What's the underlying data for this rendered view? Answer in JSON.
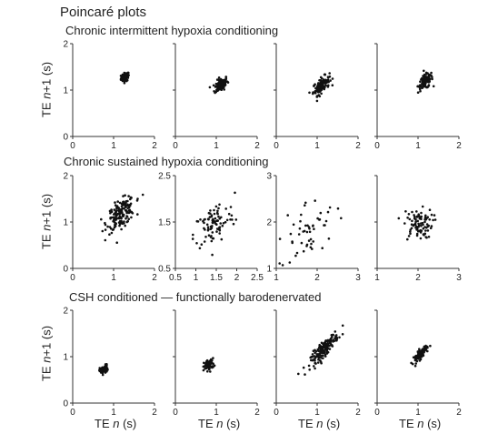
{
  "title": "Poincaré plots",
  "y_label_prefix": "TE ",
  "y_label_var": "n",
  "y_label_suffix": "+1 (s)",
  "x_label_prefix": "TE ",
  "x_label_var": "n",
  "x_label_suffix": " (s)",
  "rows": [
    {
      "title": "Chronic intermittent hypoxia conditioning"
    },
    {
      "title": "Chronic sustained hypoxia conditioning"
    },
    {
      "title": "CSH conditioned — functionally barodenervated"
    }
  ],
  "chart_data": [
    {
      "type": "scatter",
      "row": 0,
      "col": 0,
      "xlim": [
        0,
        2
      ],
      "ylim": [
        0,
        2
      ],
      "xticks": [
        0,
        1,
        2
      ],
      "yticks": [
        0,
        1,
        2
      ],
      "show_xticks": true,
      "show_yticks": true,
      "clusters": [
        {
          "cx": 1.28,
          "cy": 1.28,
          "sx": 0.05,
          "sy": 0.05,
          "rho": 0.3,
          "n": 70
        }
      ]
    },
    {
      "type": "scatter",
      "row": 0,
      "col": 1,
      "xlim": [
        0,
        2
      ],
      "ylim": [
        0,
        2
      ],
      "xticks": [
        0,
        1,
        2
      ],
      "yticks": [
        0,
        1,
        2
      ],
      "show_xticks": true,
      "show_yticks": false,
      "clusters": [
        {
          "cx": 1.12,
          "cy": 1.12,
          "sx": 0.08,
          "sy": 0.08,
          "rho": 0.5,
          "n": 110
        }
      ]
    },
    {
      "type": "scatter",
      "row": 0,
      "col": 2,
      "xlim": [
        0,
        2
      ],
      "ylim": [
        0,
        2
      ],
      "xticks": [
        0,
        1,
        2
      ],
      "yticks": [
        0,
        1,
        2
      ],
      "show_xticks": true,
      "show_yticks": false,
      "clusters": [
        {
          "cx": 1.1,
          "cy": 1.1,
          "sx": 0.1,
          "sy": 0.1,
          "rho": 0.6,
          "n": 110
        }
      ]
    },
    {
      "type": "scatter",
      "row": 0,
      "col": 3,
      "xlim": [
        0,
        2
      ],
      "ylim": [
        0,
        2
      ],
      "xticks": [
        0,
        1,
        2
      ],
      "yticks": [
        0,
        1,
        2
      ],
      "show_xticks": true,
      "show_yticks": false,
      "clusters": [
        {
          "cx": 1.18,
          "cy": 1.18,
          "sx": 0.09,
          "sy": 0.09,
          "rho": 0.5,
          "n": 110
        }
      ]
    },
    {
      "type": "scatter",
      "row": 1,
      "col": 0,
      "xlim": [
        0,
        2
      ],
      "ylim": [
        0,
        2
      ],
      "xticks": [
        0,
        1,
        2
      ],
      "yticks": [
        0,
        1,
        2
      ],
      "show_xticks": true,
      "show_yticks": true,
      "clusters": [
        {
          "cx": 1.18,
          "cy": 1.18,
          "sx": 0.17,
          "sy": 0.17,
          "rho": 0.55,
          "n": 170
        }
      ]
    },
    {
      "type": "scatter",
      "row": 1,
      "col": 1,
      "xlim": [
        0.5,
        2.5
      ],
      "ylim": [
        0.5,
        2.5
      ],
      "xticks": [
        0.5,
        1,
        1.5,
        2,
        2.5
      ],
      "yticks": [
        0.5,
        1.5,
        2.5
      ],
      "show_xticks": true,
      "show_yticks": true,
      "clusters": [
        {
          "cx": 1.45,
          "cy": 1.45,
          "sx": 0.25,
          "sy": 0.25,
          "rho": 0.45,
          "n": 90
        }
      ]
    },
    {
      "type": "scatter",
      "row": 1,
      "col": 2,
      "xlim": [
        1,
        3
      ],
      "ylim": [
        1,
        3
      ],
      "xticks": [
        1,
        2,
        3
      ],
      "yticks": [
        1,
        2,
        3
      ],
      "show_xticks": true,
      "show_yticks": true,
      "clusters": [
        {
          "cx": 1.75,
          "cy": 1.8,
          "sx": 0.35,
          "sy": 0.35,
          "rho": 0.3,
          "n": 55
        }
      ]
    },
    {
      "type": "scatter",
      "row": 1,
      "col": 3,
      "xlim": [
        1,
        3
      ],
      "ylim": [
        1,
        3
      ],
      "xticks": [
        1,
        2,
        3
      ],
      "yticks": [
        1,
        2,
        3
      ],
      "show_xticks": true,
      "show_yticks": false,
      "clusters": [
        {
          "cx": 2.0,
          "cy": 1.95,
          "sx": 0.18,
          "sy": 0.16,
          "rho": 0.1,
          "n": 90
        }
      ]
    },
    {
      "type": "scatter",
      "row": 2,
      "col": 0,
      "xlim": [
        0,
        2
      ],
      "ylim": [
        0,
        2
      ],
      "xticks": [
        0,
        1,
        2
      ],
      "yticks": [
        0,
        1,
        2
      ],
      "show_xticks": true,
      "show_yticks": true,
      "clusters": [
        {
          "cx": 0.76,
          "cy": 0.72,
          "sx": 0.05,
          "sy": 0.05,
          "rho": 0.3,
          "n": 60
        }
      ]
    },
    {
      "type": "scatter",
      "row": 2,
      "col": 1,
      "xlim": [
        0,
        2
      ],
      "ylim": [
        0,
        2
      ],
      "xticks": [
        0,
        1,
        2
      ],
      "yticks": [
        0,
        1,
        2
      ],
      "show_xticks": true,
      "show_yticks": false,
      "clusters": [
        {
          "cx": 0.82,
          "cy": 0.82,
          "sx": 0.06,
          "sy": 0.06,
          "rho": 0.3,
          "n": 70
        }
      ]
    },
    {
      "type": "scatter",
      "row": 2,
      "col": 2,
      "xlim": [
        0,
        2
      ],
      "ylim": [
        0,
        2
      ],
      "xticks": [
        0,
        1,
        2
      ],
      "yticks": [
        0,
        1,
        2
      ],
      "show_xticks": true,
      "show_yticks": false,
      "clusters": [
        {
          "cx": 1.18,
          "cy": 1.18,
          "sx": 0.17,
          "sy": 0.17,
          "rho": 0.88,
          "n": 170
        }
      ]
    },
    {
      "type": "scatter",
      "row": 2,
      "col": 3,
      "xlim": [
        0,
        2
      ],
      "ylim": [
        0,
        2
      ],
      "xticks": [
        0,
        1,
        2
      ],
      "yticks": [
        0,
        1,
        2
      ],
      "show_xticks": true,
      "show_yticks": false,
      "clusters": [
        {
          "cx": 1.05,
          "cy": 1.05,
          "sx": 0.09,
          "sy": 0.09,
          "rho": 0.8,
          "n": 85
        }
      ]
    }
  ]
}
